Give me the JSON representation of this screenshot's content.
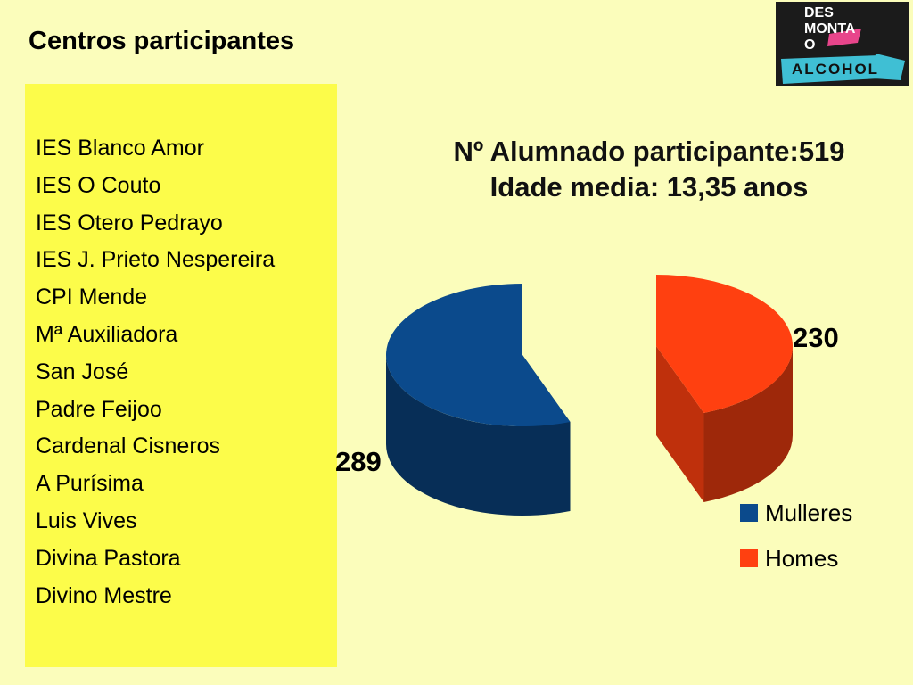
{
  "slide": {
    "title": "Centros participantes"
  },
  "logo": {
    "line1": "DES",
    "line2": "MONTA",
    "line3": "O",
    "word": "ALCOHOL",
    "colors": {
      "background": "#1b1b1b",
      "band": "#3fbfd4",
      "accent": "#e8458b"
    }
  },
  "centres": [
    "IES Blanco Amor",
    "IES O Couto",
    "IES Otero Pedrayo",
    "IES J. Prieto Nespereira",
    "CPI Mende",
    "Mª Auxiliadora",
    "San José",
    "Padre Feijoo",
    "Cardenal Cisneros",
    "A Purísima",
    "Luis Vives",
    "Divina Pastora",
    "Divino Mestre"
  ],
  "chart_data": {
    "type": "pie",
    "style": "3d-exploded",
    "title_lines": [
      "Nº Alumnado participante:519",
      "Idade media: 13,35 anos"
    ],
    "categories": [
      "Mulleres",
      "Homes"
    ],
    "values": [
      289,
      230
    ],
    "value_labels": [
      "289",
      "230"
    ],
    "colors": [
      "#0b4a8c",
      "#ff4010"
    ],
    "legend_position": "bottom-right"
  }
}
